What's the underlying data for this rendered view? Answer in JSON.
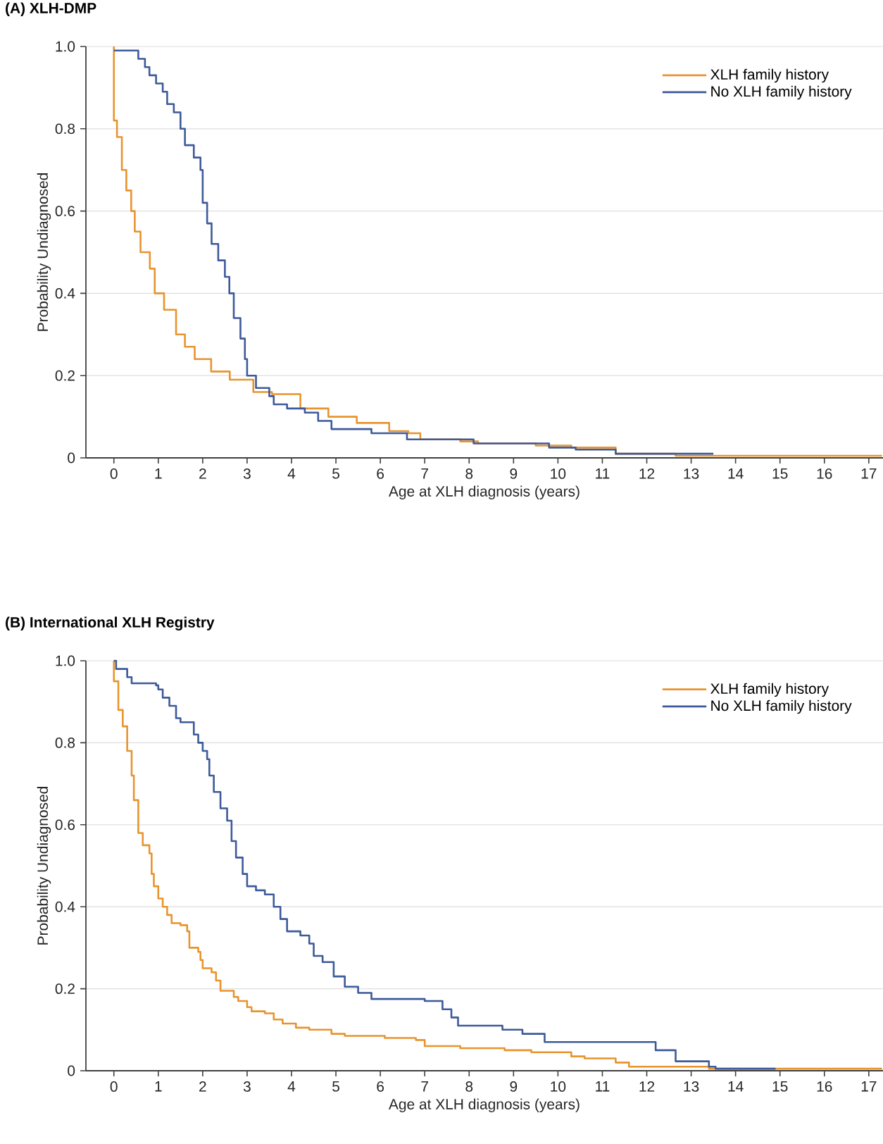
{
  "chart_data": [
    {
      "type": "step",
      "title": "(A) XLH-DMP",
      "xlabel": "Age at XLH diagnosis (years)",
      "ylabel": "Probability Undiagnosed",
      "xlim": [
        -0.63,
        17.32
      ],
      "ylim": [
        0,
        1
      ],
      "xticks": [
        0,
        1,
        2,
        3,
        4,
        5,
        6,
        7,
        8,
        9,
        10,
        11,
        12,
        13,
        14,
        15,
        16,
        17
      ],
      "yticks": [
        0,
        0.2,
        0.4,
        0.6,
        0.8,
        {
          "value": 1,
          "label": "1.0"
        }
      ],
      "grid": "y",
      "legend": "top right",
      "series": [
        {
          "name": "XLH family history",
          "color": "#e8942e",
          "x": [
            0,
            0,
            0.07,
            0.18,
            0.28,
            0.39,
            0.47,
            0.6,
            0.81,
            0.92,
            1.13,
            1.4,
            1.6,
            1.82,
            2.19,
            2.61,
            3.14,
            3.56,
            4.2,
            4.83,
            5.47,
            6.2,
            6.63,
            6.9,
            7.8,
            8.2,
            9.5,
            10.3,
            11.3,
            12.65,
            17.3
          ],
          "values": [
            1,
            0.82,
            0.78,
            0.7,
            0.65,
            0.6,
            0.55,
            0.5,
            0.46,
            0.4,
            0.36,
            0.3,
            0.27,
            0.24,
            0.21,
            0.19,
            0.16,
            0.155,
            0.12,
            0.1,
            0.085,
            0.065,
            0.06,
            0.045,
            0.04,
            0.035,
            0.03,
            0.025,
            0.01,
            0.005,
            0.005
          ]
        },
        {
          "name": "No XLH family history",
          "color": "#3d5a9a",
          "x": [
            0,
            0.5,
            0.55,
            0.7,
            0.8,
            0.95,
            1.1,
            1.2,
            1.35,
            1.5,
            1.6,
            1.8,
            1.95,
            2.0,
            2.1,
            2.2,
            2.35,
            2.5,
            2.6,
            2.7,
            2.85,
            2.95,
            3.0,
            3.2,
            3.5,
            3.6,
            3.9,
            4.3,
            4.6,
            4.9,
            5.8,
            6.6,
            8.1,
            9.8,
            10.4,
            11.3,
            13.5
          ],
          "values": [
            0.99,
            0.99,
            0.97,
            0.95,
            0.93,
            0.91,
            0.89,
            0.86,
            0.84,
            0.8,
            0.76,
            0.73,
            0.7,
            0.62,
            0.57,
            0.52,
            0.48,
            0.44,
            0.4,
            0.34,
            0.29,
            0.24,
            0.2,
            0.17,
            0.15,
            0.13,
            0.12,
            0.11,
            0.09,
            0.07,
            0.06,
            0.045,
            0.035,
            0.025,
            0.02,
            0.01,
            0.01
          ]
        }
      ]
    },
    {
      "type": "step",
      "title": "(B) International XLH Registry",
      "xlabel": "Age at XLH diagnosis (years)",
      "ylabel": "Probability Undiagnosed",
      "xlim": [
        -0.63,
        17.32
      ],
      "ylim": [
        0,
        1
      ],
      "xticks": [
        0,
        1,
        2,
        3,
        4,
        5,
        6,
        7,
        8,
        9,
        10,
        11,
        12,
        13,
        14,
        15,
        16,
        17
      ],
      "yticks": [
        0,
        0.2,
        0.4,
        0.6,
        0.8,
        {
          "value": 1,
          "label": "1.0"
        }
      ],
      "grid": "y",
      "legend": "top right",
      "series": [
        {
          "name": "XLH family history",
          "color": "#e8942e",
          "x": [
            0,
            0,
            0.1,
            0.2,
            0.3,
            0.4,
            0.45,
            0.55,
            0.65,
            0.8,
            0.85,
            0.9,
            1.0,
            1.1,
            1.2,
            1.3,
            1.5,
            1.65,
            1.7,
            1.9,
            1.95,
            2.0,
            2.2,
            2.3,
            2.4,
            2.7,
            2.8,
            3.0,
            3.1,
            3.4,
            3.6,
            3.8,
            4.1,
            4.4,
            4.9,
            5.2,
            6.1,
            6.8,
            7.0,
            7.8,
            8.8,
            9.4,
            10.3,
            10.6,
            11.3,
            11.6,
            13.4,
            17.3
          ],
          "values": [
            1,
            0.95,
            0.88,
            0.84,
            0.78,
            0.72,
            0.66,
            0.58,
            0.55,
            0.53,
            0.48,
            0.45,
            0.42,
            0.4,
            0.38,
            0.36,
            0.355,
            0.34,
            0.3,
            0.29,
            0.27,
            0.25,
            0.24,
            0.22,
            0.195,
            0.18,
            0.17,
            0.155,
            0.145,
            0.14,
            0.125,
            0.115,
            0.105,
            0.1,
            0.09,
            0.085,
            0.08,
            0.075,
            0.06,
            0.055,
            0.05,
            0.045,
            0.035,
            0.03,
            0.02,
            0.01,
            0.005,
            0.005
          ]
        },
        {
          "name": "No XLH family history",
          "color": "#3d5a9a",
          "x": [
            0,
            0.05,
            0.3,
            0.4,
            0.95,
            1.0,
            1.1,
            1.25,
            1.4,
            1.5,
            1.8,
            1.9,
            2.0,
            2.1,
            2.15,
            2.25,
            2.4,
            2.55,
            2.65,
            2.75,
            2.9,
            3.0,
            3.2,
            3.4,
            3.6,
            3.75,
            3.9,
            4.2,
            4.4,
            4.5,
            4.7,
            4.95,
            5.2,
            5.5,
            5.8,
            7.0,
            7.4,
            7.6,
            7.75,
            8.75,
            9.2,
            9.7,
            12.2,
            12.65,
            13.4,
            13.55,
            14.9
          ],
          "values": [
            1,
            0.98,
            0.96,
            0.945,
            0.94,
            0.93,
            0.91,
            0.89,
            0.86,
            0.85,
            0.82,
            0.8,
            0.78,
            0.76,
            0.72,
            0.68,
            0.64,
            0.61,
            0.56,
            0.52,
            0.48,
            0.45,
            0.44,
            0.43,
            0.4,
            0.37,
            0.34,
            0.33,
            0.31,
            0.28,
            0.265,
            0.23,
            0.205,
            0.19,
            0.175,
            0.17,
            0.15,
            0.13,
            0.11,
            0.1,
            0.09,
            0.07,
            0.05,
            0.023,
            0.01,
            0.005,
            0.005
          ]
        }
      ]
    }
  ]
}
